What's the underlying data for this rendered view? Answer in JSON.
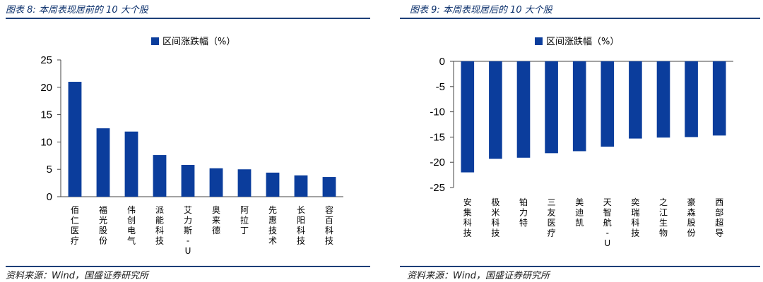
{
  "charts": [
    {
      "figure_title": "图表 8:  本周表现居前的 10 大个股",
      "source": "资料来源：Wind，国盛证券研究所"
    },
    {
      "figure_title": "图表 9:  本周表现居后的 10 大个股",
      "source": "资料来源：Wind，国盛证券研究所"
    }
  ],
  "chart_data": [
    {
      "type": "bar",
      "categories": [
        "佰仁医疗",
        "福光股份",
        "伟创电气",
        "派能科技",
        "艾力斯-U",
        "奥来德",
        "阿拉丁",
        "先惠技术",
        "长阳科技",
        "容百科技"
      ],
      "series": [
        {
          "name": "区间涨跌幅（%）",
          "values": [
            21.0,
            12.5,
            11.9,
            7.6,
            5.8,
            5.2,
            5.0,
            4.4,
            3.9,
            3.6
          ]
        }
      ],
      "ylim": [
        0,
        25
      ],
      "yticks": [
        0,
        5,
        10,
        15,
        20,
        25
      ],
      "legend": "top-center",
      "bar_color": "#0b3d9c"
    },
    {
      "type": "bar",
      "categories": [
        "安集科技",
        "极米科技",
        "铂力特",
        "三友医疗",
        "美迪凯",
        "天智航-U",
        "奕瑞科技",
        "之江生物",
        "豪森股份",
        "西部超导"
      ],
      "series": [
        {
          "name": "区间涨跌幅（%）",
          "values": [
            -22.0,
            -19.3,
            -19.1,
            -18.2,
            -17.8,
            -16.9,
            -15.3,
            -15.1,
            -15.0,
            -14.7
          ]
        }
      ],
      "ylim": [
        -25,
        0
      ],
      "yticks": [
        0,
        -5,
        -10,
        -15,
        -20,
        -25
      ],
      "legend": "top-center",
      "bar_color": "#0b3d9c"
    }
  ]
}
